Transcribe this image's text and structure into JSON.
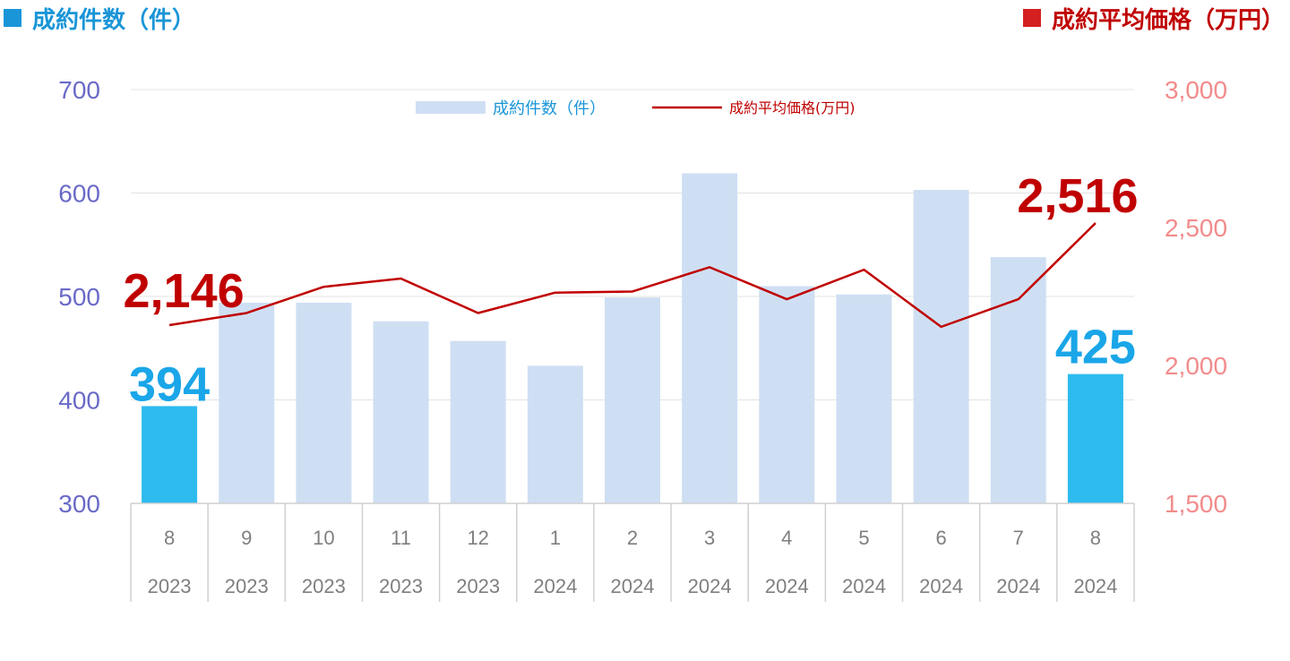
{
  "header": {
    "left_label": "成約件数（件）",
    "right_label": "成約平均価格（万円）",
    "left_color": "#1a95d8",
    "right_color": "#c00000"
  },
  "legend": {
    "bar_label": "成約件数（件）",
    "line_label": "成約平均価格(万円)"
  },
  "chart_data": {
    "type": "bar",
    "categories": [
      "8",
      "9",
      "10",
      "11",
      "12",
      "1",
      "2",
      "3",
      "4",
      "5",
      "6",
      "7",
      "8"
    ],
    "years": [
      "2023",
      "2023",
      "2023",
      "2023",
      "2023",
      "2024",
      "2024",
      "2024",
      "2024",
      "2024",
      "2024",
      "2024",
      "2024"
    ],
    "series": [
      {
        "name": "成約件数（件）",
        "type": "bar",
        "axis": "left",
        "values": [
          394,
          494,
          494,
          476,
          457,
          433,
          499,
          619,
          510,
          502,
          603,
          538,
          425
        ],
        "color": "#cfdff3",
        "highlight_color": "#2dbbee",
        "highlight_indices": [
          0,
          12
        ]
      },
      {
        "name": "成約平均価格(万円)",
        "type": "line",
        "axis": "right",
        "values": [
          2146,
          2190,
          2285,
          2315,
          2190,
          2264,
          2268,
          2356,
          2240,
          2347,
          2140,
          2240,
          2516
        ],
        "color": "#c00000"
      }
    ],
    "y_left": {
      "lim": [
        300,
        700
      ],
      "ticks": [
        "300",
        "400",
        "500",
        "600",
        "700"
      ]
    },
    "y_right": {
      "lim": [
        1500,
        3000
      ],
      "ticks": [
        "1,500",
        "2,000",
        "2,500",
        "3,000"
      ]
    },
    "annotations": {
      "bar_first": "394",
      "bar_last": "425",
      "line_first": "2,146",
      "line_last": "2,516"
    },
    "grid": true,
    "legend_position": "top-center"
  }
}
